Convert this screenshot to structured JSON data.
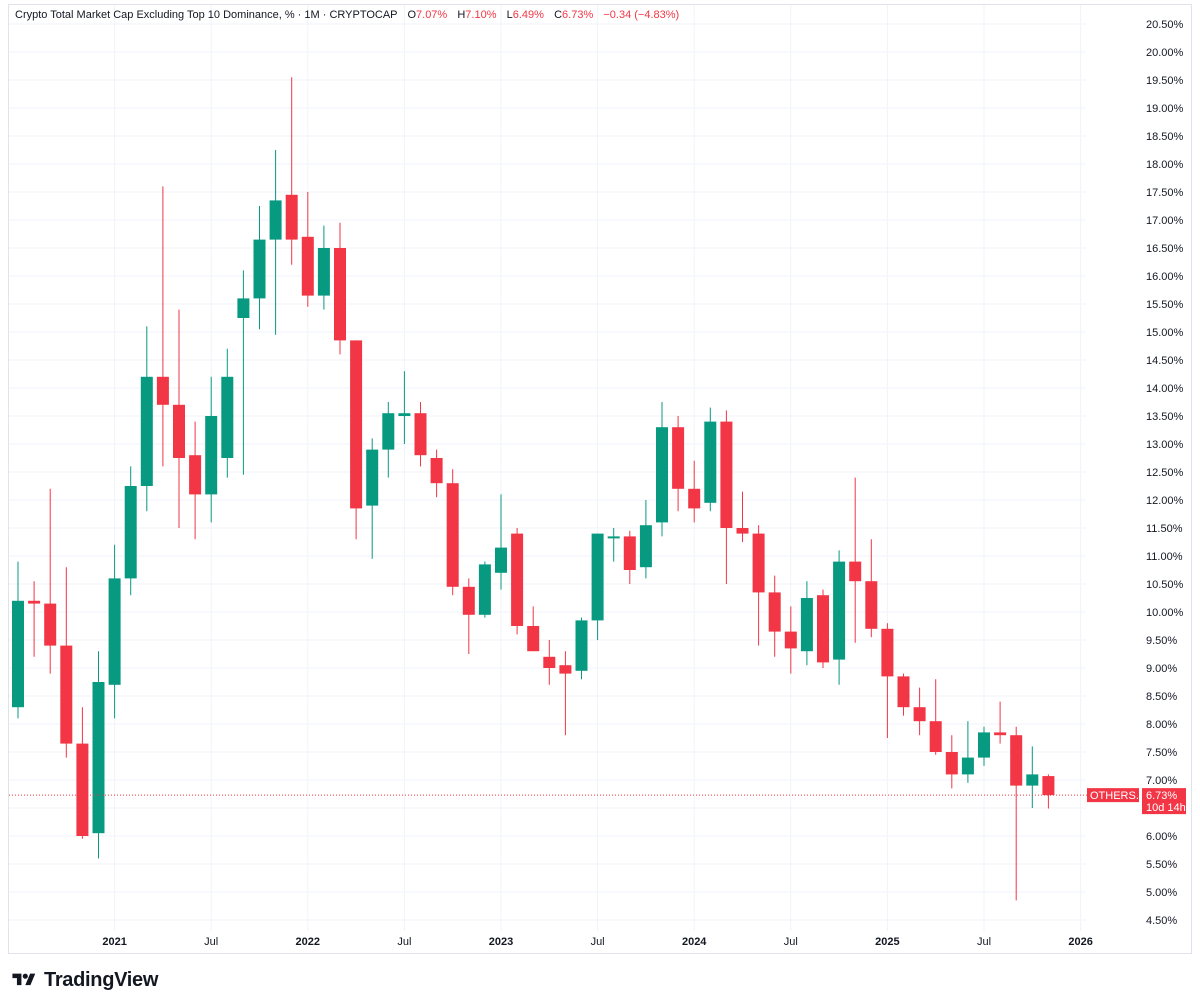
{
  "legend": {
    "title": "Crypto Total Market Cap Excluding Top 10 Dominance, % · 1M · CRYPTOCAP",
    "open_label": "O",
    "open_value": "7.07%",
    "high_label": "H",
    "high_value": "7.10%",
    "low_label": "L",
    "low_value": "6.49%",
    "close_label": "C",
    "close_value": "6.73%",
    "change": "−0.34 (−4.83%)"
  },
  "price_tag": {
    "symbol": "OTHERS.D",
    "price": "6.73%",
    "countdown": "10d 14h"
  },
  "brand": {
    "name": "TradingView"
  },
  "colors": {
    "up": "#089981",
    "down": "#f23645",
    "grid": "#f0f3fa",
    "text": "#131722"
  },
  "chart_data": {
    "type": "candlestick",
    "title": "Crypto Total Market Cap Excluding Top 10 Dominance, % · 1M · CRYPTOCAP",
    "interval": "1M",
    "y_unit": "%",
    "ylim": [
      4.3,
      20.75
    ],
    "y_ticks": [
      "20.50%",
      "20.00%",
      "19.50%",
      "19.00%",
      "18.50%",
      "18.00%",
      "17.50%",
      "17.00%",
      "16.50%",
      "16.00%",
      "15.50%",
      "15.00%",
      "14.50%",
      "14.00%",
      "13.50%",
      "13.00%",
      "12.50%",
      "12.00%",
      "11.50%",
      "11.00%",
      "10.50%",
      "10.00%",
      "9.50%",
      "9.00%",
      "8.50%",
      "8.00%",
      "7.50%",
      "7.00%",
      "6.50%",
      "6.00%",
      "5.50%",
      "5.00%",
      "4.50%"
    ],
    "x_ticks": [
      "2021",
      "Jul",
      "2022",
      "Jul",
      "2023",
      "Jul",
      "2024",
      "Jul",
      "2025",
      "Jul",
      "2026"
    ],
    "grid": true,
    "last_price": 6.73,
    "candles": [
      {
        "date": "2020-07",
        "o": 8.3,
        "h": 10.9,
        "l": 8.1,
        "c": 10.2
      },
      {
        "date": "2020-08",
        "o": 10.2,
        "h": 10.55,
        "l": 9.2,
        "c": 10.15
      },
      {
        "date": "2020-09",
        "o": 10.15,
        "h": 12.2,
        "l": 8.9,
        "c": 9.4
      },
      {
        "date": "2020-10",
        "o": 9.4,
        "h": 10.8,
        "l": 7.4,
        "c": 7.65
      },
      {
        "date": "2020-11",
        "o": 7.65,
        "h": 8.3,
        "l": 5.95,
        "c": 6.0
      },
      {
        "date": "2020-12",
        "o": 6.05,
        "h": 9.3,
        "l": 5.6,
        "c": 8.75
      },
      {
        "date": "2021-01",
        "o": 8.7,
        "h": 11.2,
        "l": 8.1,
        "c": 10.6
      },
      {
        "date": "2021-02",
        "o": 10.6,
        "h": 12.6,
        "l": 10.3,
        "c": 12.25
      },
      {
        "date": "2021-03",
        "o": 12.25,
        "h": 15.1,
        "l": 11.8,
        "c": 14.2
      },
      {
        "date": "2021-04",
        "o": 14.2,
        "h": 17.6,
        "l": 12.6,
        "c": 13.7
      },
      {
        "date": "2021-05",
        "o": 13.7,
        "h": 15.4,
        "l": 11.5,
        "c": 12.75
      },
      {
        "date": "2021-06",
        "o": 12.8,
        "h": 13.4,
        "l": 11.3,
        "c": 12.1
      },
      {
        "date": "2021-07",
        "o": 12.1,
        "h": 14.2,
        "l": 11.6,
        "c": 13.5
      },
      {
        "date": "2021-08",
        "o": 12.75,
        "h": 14.7,
        "l": 12.4,
        "c": 14.2
      },
      {
        "date": "2021-09",
        "o": 15.25,
        "h": 16.1,
        "l": 12.45,
        "c": 15.6
      },
      {
        "date": "2021-10",
        "o": 15.6,
        "h": 17.25,
        "l": 15.05,
        "c": 16.65
      },
      {
        "date": "2021-11",
        "o": 16.65,
        "h": 18.25,
        "l": 14.95,
        "c": 17.35
      },
      {
        "date": "2021-12",
        "o": 17.45,
        "h": 19.55,
        "l": 16.2,
        "c": 16.65
      },
      {
        "date": "2022-01",
        "o": 16.7,
        "h": 17.5,
        "l": 15.45,
        "c": 15.65
      },
      {
        "date": "2022-02",
        "o": 15.65,
        "h": 16.9,
        "l": 15.4,
        "c": 16.5
      },
      {
        "date": "2022-03",
        "o": 16.5,
        "h": 16.95,
        "l": 14.6,
        "c": 14.85
      },
      {
        "date": "2022-04",
        "o": 14.85,
        "h": 14.85,
        "l": 11.3,
        "c": 11.85
      },
      {
        "date": "2022-05",
        "o": 11.9,
        "h": 13.1,
        "l": 10.95,
        "c": 12.9
      },
      {
        "date": "2022-06",
        "o": 12.9,
        "h": 13.75,
        "l": 12.4,
        "c": 13.55
      },
      {
        "date": "2022-07",
        "o": 13.5,
        "h": 14.3,
        "l": 13.0,
        "c": 13.55
      },
      {
        "date": "2022-08",
        "o": 13.55,
        "h": 13.75,
        "l": 12.6,
        "c": 12.8
      },
      {
        "date": "2022-09",
        "o": 12.75,
        "h": 12.9,
        "l": 12.05,
        "c": 12.3
      },
      {
        "date": "2022-10",
        "o": 12.3,
        "h": 12.55,
        "l": 10.3,
        "c": 10.45
      },
      {
        "date": "2022-11",
        "o": 10.45,
        "h": 10.6,
        "l": 9.25,
        "c": 9.95
      },
      {
        "date": "2022-12",
        "o": 9.95,
        "h": 10.9,
        "l": 9.9,
        "c": 10.85
      },
      {
        "date": "2023-01",
        "o": 10.7,
        "h": 12.1,
        "l": 10.4,
        "c": 11.15
      },
      {
        "date": "2023-02",
        "o": 11.4,
        "h": 11.5,
        "l": 9.6,
        "c": 9.75
      },
      {
        "date": "2023-03",
        "o": 9.75,
        "h": 10.1,
        "l": 9.3,
        "c": 9.3
      },
      {
        "date": "2023-04",
        "o": 9.2,
        "h": 9.5,
        "l": 8.7,
        "c": 9.0
      },
      {
        "date": "2023-05",
        "o": 9.05,
        "h": 9.3,
        "l": 7.8,
        "c": 8.9
      },
      {
        "date": "2023-06",
        "o": 8.95,
        "h": 9.9,
        "l": 8.8,
        "c": 9.85
      },
      {
        "date": "2023-07",
        "o": 9.85,
        "h": 11.4,
        "l": 9.5,
        "c": 11.4
      },
      {
        "date": "2023-08",
        "o": 11.35,
        "h": 11.5,
        "l": 10.9,
        "c": 11.35
      },
      {
        "date": "2023-09",
        "o": 11.35,
        "h": 11.45,
        "l": 10.5,
        "c": 10.75
      },
      {
        "date": "2023-10",
        "o": 10.8,
        "h": 12.0,
        "l": 10.6,
        "c": 11.55
      },
      {
        "date": "2023-11",
        "o": 11.6,
        "h": 13.75,
        "l": 11.35,
        "c": 13.3
      },
      {
        "date": "2023-12",
        "o": 13.3,
        "h": 13.5,
        "l": 11.8,
        "c": 12.2
      },
      {
        "date": "2024-01",
        "o": 12.2,
        "h": 12.7,
        "l": 11.6,
        "c": 11.85
      },
      {
        "date": "2024-02",
        "o": 11.95,
        "h": 13.65,
        "l": 11.8,
        "c": 13.4
      },
      {
        "date": "2024-03",
        "o": 13.4,
        "h": 13.6,
        "l": 10.5,
        "c": 11.5
      },
      {
        "date": "2024-04",
        "o": 11.5,
        "h": 12.15,
        "l": 11.25,
        "c": 11.4
      },
      {
        "date": "2024-05",
        "o": 11.4,
        "h": 11.55,
        "l": 9.4,
        "c": 10.35
      },
      {
        "date": "2024-06",
        "o": 10.35,
        "h": 10.65,
        "l": 9.2,
        "c": 9.65
      },
      {
        "date": "2024-07",
        "o": 9.65,
        "h": 10.1,
        "l": 8.9,
        "c": 9.35
      },
      {
        "date": "2024-08",
        "o": 9.3,
        "h": 10.55,
        "l": 9.05,
        "c": 10.25
      },
      {
        "date": "2024-09",
        "o": 10.3,
        "h": 10.4,
        "l": 9.0,
        "c": 9.1
      },
      {
        "date": "2024-10",
        "o": 9.15,
        "h": 11.1,
        "l": 8.7,
        "c": 10.9
      },
      {
        "date": "2024-11",
        "o": 10.9,
        "h": 12.4,
        "l": 9.45,
        "c": 10.55
      },
      {
        "date": "2024-12",
        "o": 10.55,
        "h": 11.3,
        "l": 9.55,
        "c": 9.7
      },
      {
        "date": "2025-01",
        "o": 9.7,
        "h": 9.8,
        "l": 7.75,
        "c": 8.85
      },
      {
        "date": "2025-02",
        "o": 8.85,
        "h": 8.9,
        "l": 8.15,
        "c": 8.3
      },
      {
        "date": "2025-03",
        "o": 8.3,
        "h": 8.65,
        "l": 7.8,
        "c": 8.05
      },
      {
        "date": "2025-04",
        "o": 8.05,
        "h": 8.8,
        "l": 7.45,
        "c": 7.5
      },
      {
        "date": "2025-05",
        "o": 7.5,
        "h": 7.8,
        "l": 6.85,
        "c": 7.1
      },
      {
        "date": "2025-06",
        "o": 7.1,
        "h": 8.05,
        "l": 6.95,
        "c": 7.4
      },
      {
        "date": "2025-07",
        "o": 7.4,
        "h": 7.95,
        "l": 7.25,
        "c": 7.85
      },
      {
        "date": "2025-08",
        "o": 7.85,
        "h": 8.4,
        "l": 7.65,
        "c": 7.8
      },
      {
        "date": "2025-09",
        "o": 7.8,
        "h": 7.95,
        "l": 4.85,
        "c": 6.9
      },
      {
        "date": "2025-10",
        "o": 6.9,
        "h": 7.6,
        "l": 6.5,
        "c": 7.1
      },
      {
        "date": "2025-11",
        "o": 7.07,
        "h": 7.1,
        "l": 6.49,
        "c": 6.73
      }
    ]
  }
}
